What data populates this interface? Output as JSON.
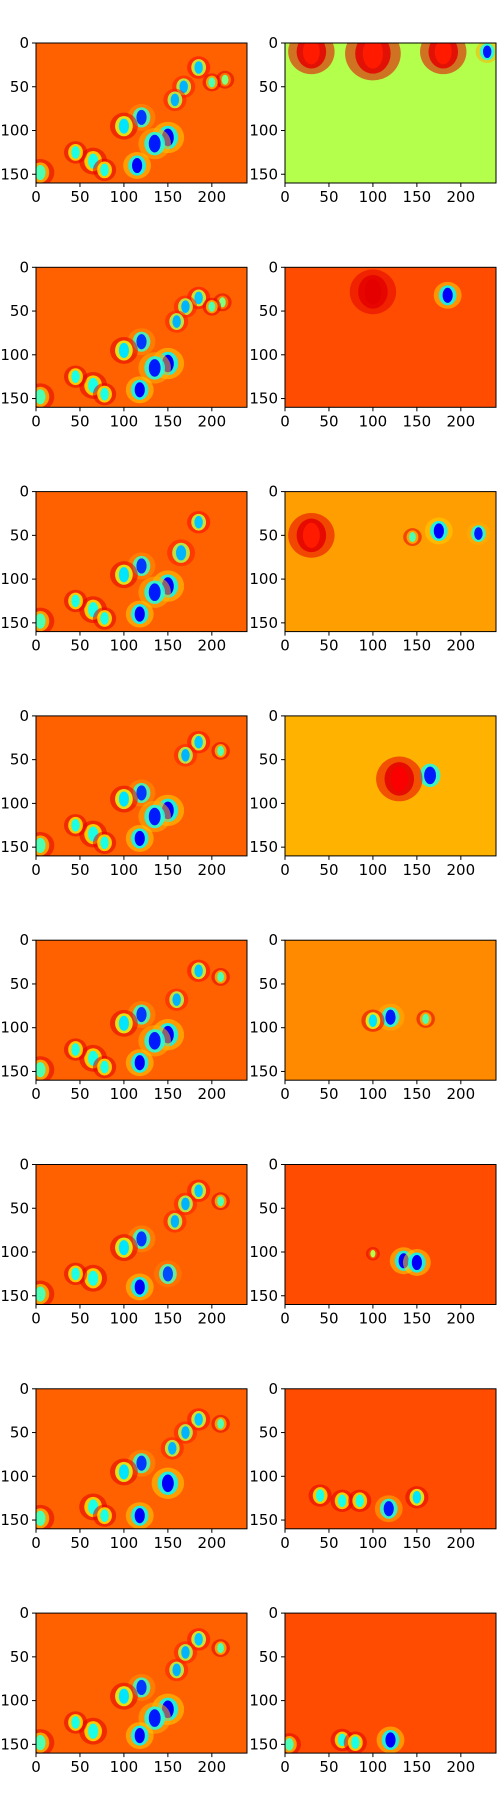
{
  "chart_data": {
    "type": "heatmap",
    "colormap": "jet",
    "layout": {
      "rows": 8,
      "cols": 2
    },
    "title": "",
    "xlabel": "",
    "ylabel": "",
    "xlim": [
      0,
      240
    ],
    "ylim": [
      160,
      0
    ],
    "x_ticks": [
      0,
      50,
      100,
      150,
      200
    ],
    "y_ticks": [
      0,
      50,
      100,
      150
    ],
    "grid": false,
    "panels": [
      {
        "row": 1,
        "col": 1,
        "background_level": 0.78,
        "features": [
          {
            "x": 185,
            "y": 28,
            "v": 0.32,
            "r": 5
          },
          {
            "x": 168,
            "y": 50,
            "v": 0.3,
            "r": 5
          },
          {
            "x": 158,
            "y": 65,
            "v": 0.3,
            "r": 5
          },
          {
            "x": 120,
            "y": 85,
            "v": 0.18,
            "r": 6
          },
          {
            "x": 100,
            "y": 95,
            "v": 0.35,
            "r": 6
          },
          {
            "x": 150,
            "y": 108,
            "v": 0.12,
            "r": 7
          },
          {
            "x": 135,
            "y": 115,
            "v": 0.15,
            "r": 7
          },
          {
            "x": 115,
            "y": 140,
            "v": 0.12,
            "r": 6
          },
          {
            "x": 65,
            "y": 135,
            "v": 0.4,
            "r": 6
          },
          {
            "x": 78,
            "y": 145,
            "v": 0.4,
            "r": 5
          },
          {
            "x": 45,
            "y": 125,
            "v": 0.4,
            "r": 5
          },
          {
            "x": 5,
            "y": 148,
            "v": 0.45,
            "r": 6
          },
          {
            "x": 215,
            "y": 42,
            "v": 0.5,
            "r": 4
          },
          {
            "x": 200,
            "y": 45,
            "v": 0.45,
            "r": 4
          }
        ]
      },
      {
        "row": 1,
        "col": 2,
        "background_level": 0.55,
        "features": [
          {
            "x": 230,
            "y": 10,
            "v": 0.15,
            "r": 5
          },
          {
            "x": 180,
            "y": 10,
            "v": 0.85,
            "r": 10
          },
          {
            "x": 100,
            "y": 12,
            "v": 0.85,
            "r": 12
          },
          {
            "x": 30,
            "y": 10,
            "v": 0.85,
            "r": 10
          }
        ]
      },
      {
        "row": 2,
        "col": 1,
        "background_level": 0.78,
        "features": [
          {
            "x": 185,
            "y": 35,
            "v": 0.32,
            "r": 5
          },
          {
            "x": 170,
            "y": 45,
            "v": 0.3,
            "r": 5
          },
          {
            "x": 160,
            "y": 62,
            "v": 0.3,
            "r": 5
          },
          {
            "x": 120,
            "y": 85,
            "v": 0.18,
            "r": 6
          },
          {
            "x": 100,
            "y": 95,
            "v": 0.35,
            "r": 6
          },
          {
            "x": 150,
            "y": 110,
            "v": 0.12,
            "r": 7
          },
          {
            "x": 135,
            "y": 115,
            "v": 0.15,
            "r": 7
          },
          {
            "x": 118,
            "y": 140,
            "v": 0.12,
            "r": 6
          },
          {
            "x": 65,
            "y": 135,
            "v": 0.4,
            "r": 6
          },
          {
            "x": 78,
            "y": 145,
            "v": 0.4,
            "r": 5
          },
          {
            "x": 45,
            "y": 125,
            "v": 0.4,
            "r": 5
          },
          {
            "x": 5,
            "y": 148,
            "v": 0.45,
            "r": 6
          },
          {
            "x": 212,
            "y": 40,
            "v": 0.5,
            "r": 4
          },
          {
            "x": 200,
            "y": 45,
            "v": 0.45,
            "r": 4
          }
        ]
      },
      {
        "row": 2,
        "col": 2,
        "background_level": 0.8,
        "features": [
          {
            "x": 185,
            "y": 32,
            "v": 0.12,
            "r": 6
          },
          {
            "x": 100,
            "y": 28,
            "v": 0.9,
            "r": 10
          }
        ]
      },
      {
        "row": 3,
        "col": 1,
        "background_level": 0.78,
        "features": [
          {
            "x": 185,
            "y": 35,
            "v": 0.32,
            "r": 5
          },
          {
            "x": 165,
            "y": 70,
            "v": 0.3,
            "r": 6
          },
          {
            "x": 120,
            "y": 85,
            "v": 0.18,
            "r": 6
          },
          {
            "x": 100,
            "y": 95,
            "v": 0.35,
            "r": 6
          },
          {
            "x": 150,
            "y": 108,
            "v": 0.12,
            "r": 7
          },
          {
            "x": 135,
            "y": 115,
            "v": 0.15,
            "r": 7
          },
          {
            "x": 118,
            "y": 140,
            "v": 0.12,
            "r": 6
          },
          {
            "x": 65,
            "y": 135,
            "v": 0.4,
            "r": 6
          },
          {
            "x": 78,
            "y": 145,
            "v": 0.4,
            "r": 5
          },
          {
            "x": 45,
            "y": 125,
            "v": 0.4,
            "r": 5
          },
          {
            "x": 5,
            "y": 148,
            "v": 0.45,
            "r": 6
          }
        ]
      },
      {
        "row": 3,
        "col": 2,
        "background_level": 0.72,
        "features": [
          {
            "x": 175,
            "y": 45,
            "v": 0.12,
            "r": 6
          },
          {
            "x": 220,
            "y": 48,
            "v": 0.15,
            "r": 5
          },
          {
            "x": 145,
            "y": 52,
            "v": 0.45,
            "r": 4
          },
          {
            "x": 30,
            "y": 50,
            "v": 0.85,
            "r": 10
          }
        ]
      },
      {
        "row": 4,
        "col": 1,
        "background_level": 0.78,
        "features": [
          {
            "x": 185,
            "y": 30,
            "v": 0.32,
            "r": 5
          },
          {
            "x": 210,
            "y": 40,
            "v": 0.45,
            "r": 4
          },
          {
            "x": 170,
            "y": 45,
            "v": 0.3,
            "r": 5
          },
          {
            "x": 120,
            "y": 88,
            "v": 0.18,
            "r": 6
          },
          {
            "x": 100,
            "y": 95,
            "v": 0.35,
            "r": 6
          },
          {
            "x": 150,
            "y": 108,
            "v": 0.12,
            "r": 7
          },
          {
            "x": 135,
            "y": 115,
            "v": 0.15,
            "r": 7
          },
          {
            "x": 118,
            "y": 140,
            "v": 0.12,
            "r": 6
          },
          {
            "x": 65,
            "y": 135,
            "v": 0.4,
            "r": 6
          },
          {
            "x": 78,
            "y": 145,
            "v": 0.4,
            "r": 5
          },
          {
            "x": 45,
            "y": 125,
            "v": 0.4,
            "r": 5
          },
          {
            "x": 5,
            "y": 148,
            "v": 0.45,
            "r": 6
          }
        ]
      },
      {
        "row": 4,
        "col": 2,
        "background_level": 0.7,
        "features": [
          {
            "x": 165,
            "y": 68,
            "v": 0.15,
            "r": 7
          },
          {
            "x": 130,
            "y": 72,
            "v": 0.88,
            "r": 10
          }
        ]
      },
      {
        "row": 5,
        "col": 1,
        "background_level": 0.78,
        "features": [
          {
            "x": 185,
            "y": 35,
            "v": 0.32,
            "r": 5
          },
          {
            "x": 210,
            "y": 42,
            "v": 0.45,
            "r": 4
          },
          {
            "x": 160,
            "y": 68,
            "v": 0.3,
            "r": 5
          },
          {
            "x": 120,
            "y": 85,
            "v": 0.18,
            "r": 6
          },
          {
            "x": 100,
            "y": 95,
            "v": 0.35,
            "r": 6
          },
          {
            "x": 150,
            "y": 108,
            "v": 0.12,
            "r": 7
          },
          {
            "x": 135,
            "y": 115,
            "v": 0.15,
            "r": 7
          },
          {
            "x": 118,
            "y": 140,
            "v": 0.12,
            "r": 6
          },
          {
            "x": 65,
            "y": 135,
            "v": 0.4,
            "r": 6
          },
          {
            "x": 78,
            "y": 145,
            "v": 0.4,
            "r": 5
          },
          {
            "x": 45,
            "y": 125,
            "v": 0.4,
            "r": 5
          },
          {
            "x": 5,
            "y": 148,
            "v": 0.45,
            "r": 6
          }
        ]
      },
      {
        "row": 5,
        "col": 2,
        "background_level": 0.74,
        "features": [
          {
            "x": 120,
            "y": 88,
            "v": 0.15,
            "r": 6
          },
          {
            "x": 100,
            "y": 92,
            "v": 0.35,
            "r": 5
          },
          {
            "x": 160,
            "y": 90,
            "v": 0.45,
            "r": 4
          }
        ]
      },
      {
        "row": 6,
        "col": 1,
        "background_level": 0.78,
        "features": [
          {
            "x": 185,
            "y": 30,
            "v": 0.32,
            "r": 5
          },
          {
            "x": 210,
            "y": 42,
            "v": 0.45,
            "r": 4
          },
          {
            "x": 170,
            "y": 45,
            "v": 0.3,
            "r": 5
          },
          {
            "x": 158,
            "y": 65,
            "v": 0.3,
            "r": 5
          },
          {
            "x": 120,
            "y": 85,
            "v": 0.18,
            "r": 6
          },
          {
            "x": 100,
            "y": 95,
            "v": 0.35,
            "r": 6
          },
          {
            "x": 150,
            "y": 125,
            "v": 0.2,
            "r": 6
          },
          {
            "x": 118,
            "y": 140,
            "v": 0.12,
            "r": 6
          },
          {
            "x": 65,
            "y": 130,
            "v": 0.4,
            "r": 6
          },
          {
            "x": 45,
            "y": 125,
            "v": 0.4,
            "r": 5
          },
          {
            "x": 5,
            "y": 148,
            "v": 0.45,
            "r": 6
          }
        ]
      },
      {
        "row": 6,
        "col": 2,
        "background_level": 0.8,
        "features": [
          {
            "x": 135,
            "y": 110,
            "v": 0.12,
            "r": 6
          },
          {
            "x": 150,
            "y": 112,
            "v": 0.12,
            "r": 6
          },
          {
            "x": 100,
            "y": 102,
            "v": 0.55,
            "r": 3
          }
        ]
      },
      {
        "row": 7,
        "col": 1,
        "background_level": 0.78,
        "features": [
          {
            "x": 185,
            "y": 35,
            "v": 0.32,
            "r": 5
          },
          {
            "x": 210,
            "y": 40,
            "v": 0.45,
            "r": 4
          },
          {
            "x": 170,
            "y": 50,
            "v": 0.3,
            "r": 5
          },
          {
            "x": 155,
            "y": 68,
            "v": 0.3,
            "r": 5
          },
          {
            "x": 120,
            "y": 85,
            "v": 0.18,
            "r": 6
          },
          {
            "x": 100,
            "y": 95,
            "v": 0.35,
            "r": 6
          },
          {
            "x": 150,
            "y": 108,
            "v": 0.12,
            "r": 7
          },
          {
            "x": 118,
            "y": 145,
            "v": 0.12,
            "r": 6
          },
          {
            "x": 65,
            "y": 135,
            "v": 0.4,
            "r": 6
          },
          {
            "x": 78,
            "y": 145,
            "v": 0.4,
            "r": 5
          },
          {
            "x": 5,
            "y": 148,
            "v": 0.45,
            "r": 6
          }
        ]
      },
      {
        "row": 7,
        "col": 2,
        "background_level": 0.8,
        "features": [
          {
            "x": 40,
            "y": 122,
            "v": 0.4,
            "r": 5
          },
          {
            "x": 65,
            "y": 128,
            "v": 0.4,
            "r": 5
          },
          {
            "x": 85,
            "y": 128,
            "v": 0.4,
            "r": 5
          },
          {
            "x": 118,
            "y": 137,
            "v": 0.15,
            "r": 6
          },
          {
            "x": 150,
            "y": 124,
            "v": 0.35,
            "r": 5
          }
        ]
      },
      {
        "row": 8,
        "col": 1,
        "background_level": 0.78,
        "features": [
          {
            "x": 185,
            "y": 30,
            "v": 0.32,
            "r": 5
          },
          {
            "x": 210,
            "y": 40,
            "v": 0.45,
            "r": 4
          },
          {
            "x": 170,
            "y": 45,
            "v": 0.3,
            "r": 5
          },
          {
            "x": 160,
            "y": 65,
            "v": 0.3,
            "r": 5
          },
          {
            "x": 120,
            "y": 85,
            "v": 0.18,
            "r": 6
          },
          {
            "x": 100,
            "y": 95,
            "v": 0.35,
            "r": 6
          },
          {
            "x": 150,
            "y": 110,
            "v": 0.12,
            "r": 7
          },
          {
            "x": 135,
            "y": 120,
            "v": 0.15,
            "r": 7
          },
          {
            "x": 118,
            "y": 140,
            "v": 0.12,
            "r": 6
          },
          {
            "x": 65,
            "y": 135,
            "v": 0.4,
            "r": 6
          },
          {
            "x": 45,
            "y": 125,
            "v": 0.4,
            "r": 5
          },
          {
            "x": 5,
            "y": 148,
            "v": 0.45,
            "r": 6
          }
        ]
      },
      {
        "row": 8,
        "col": 2,
        "background_level": 0.8,
        "features": [
          {
            "x": 5,
            "y": 150,
            "v": 0.45,
            "r": 5
          },
          {
            "x": 65,
            "y": 145,
            "v": 0.4,
            "r": 5
          },
          {
            "x": 80,
            "y": 148,
            "v": 0.4,
            "r": 5
          },
          {
            "x": 120,
            "y": 145,
            "v": 0.12,
            "r": 6
          }
        ]
      }
    ]
  }
}
